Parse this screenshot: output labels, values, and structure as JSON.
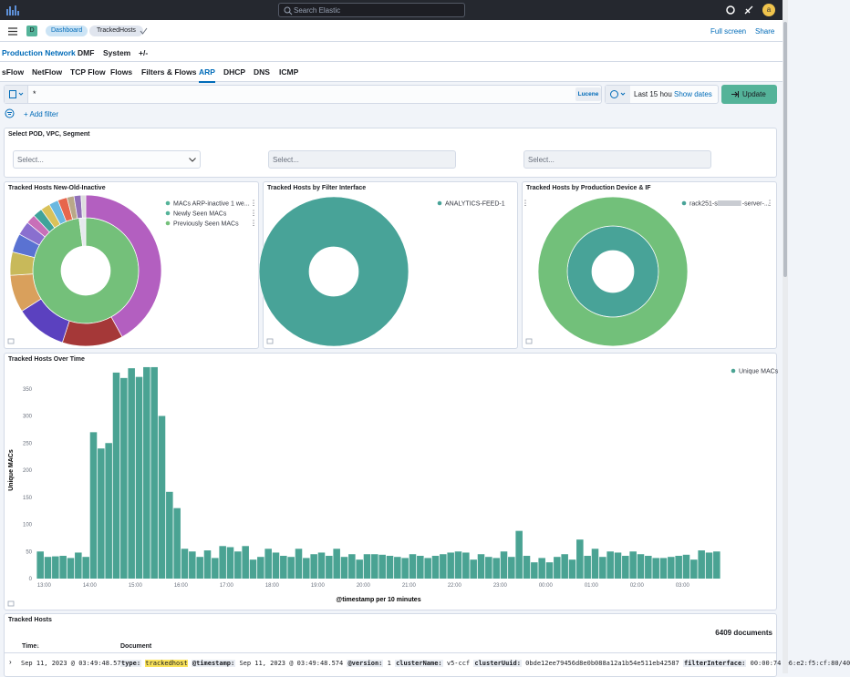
{
  "header": {
    "search_placeholder": "Search Elastic",
    "avatar": "a"
  },
  "nav": {
    "badge": "D",
    "breadcrumbs": [
      "Dashboard",
      "TrackedHosts"
    ],
    "actions": [
      "Full screen",
      "Share"
    ]
  },
  "tabs_primary": [
    "Production Network",
    "DMF",
    "System",
    "+/-"
  ],
  "tabs_secondary": [
    "sFlow",
    "NetFlow",
    "TCP Flow",
    "Flows",
    "Filters & Flows",
    "ARP",
    "DHCP",
    "DNS",
    "ICMP"
  ],
  "query": {
    "text": "*",
    "language": "Lucene",
    "time": "Last 15 hou",
    "show_dates": "Show dates",
    "update": "Update",
    "add_filter": "+ Add filter"
  },
  "controls": {
    "title": "Select POD, VPC, Segment",
    "selects": [
      "Select...",
      "Select...",
      "Select..."
    ]
  },
  "chart_data": [
    {
      "type": "pie",
      "title": "Tracked Hosts New-Old-Inactive",
      "series": [
        {
          "name": "MACs ARP-inactive 1 we...",
          "color": "#54b399"
        },
        {
          "name": "Newly Seen MACs",
          "color": "#54b399"
        },
        {
          "name": "Previously Seen MACs",
          "color": "#74c07a"
        }
      ],
      "rings": [
        {
          "values": [
            98,
            2
          ],
          "colors": [
            "#74c07a",
            "#e6e9ee"
          ]
        },
        {
          "values": [
            42,
            13,
            11,
            8,
            5,
            4,
            3,
            2,
            2,
            2,
            2,
            2,
            1.5,
            1.5,
            1
          ],
          "colors": [
            "#b35fc0",
            "#a53838",
            "#5b41bf",
            "#d9a05c",
            "#c8b95a",
            "#5a72d2",
            "#8a6fcf",
            "#c86fb8",
            "#3fa39a",
            "#d9c25a",
            "#6ab8e0",
            "#e7664c",
            "#b9a888",
            "#9170b8",
            "#ddd"
          ]
        }
      ]
    },
    {
      "type": "pie",
      "title": "Tracked Hosts by Filter Interface",
      "series": [
        {
          "name": "ANALYTICS-FEED-1",
          "color": "#48a398"
        }
      ],
      "rings": [
        {
          "values": [
            100
          ],
          "colors": [
            "#48a398"
          ]
        }
      ]
    },
    {
      "type": "pie",
      "title": "Tracked Hosts by Production Device & IF",
      "series": [
        {
          "name": "rack251-s",
          "suffix": "-server-...",
          "color": "#48a398"
        }
      ],
      "rings": [
        {
          "values": [
            100
          ],
          "colors": [
            "#48a398"
          ]
        },
        {
          "values": [
            100
          ],
          "colors": [
            "#72c07a"
          ]
        }
      ]
    },
    {
      "type": "bar",
      "title": "Tracked Hosts Over Time",
      "ylabel": "Unique MACs",
      "xlabel": "@timestamp per 10 minutes",
      "categories": [
        null,
        "13:00",
        null,
        null,
        null,
        null,
        null,
        "14:00",
        null,
        null,
        null,
        null,
        null,
        "15:00",
        null,
        null,
        null,
        null,
        null,
        "16:00",
        null,
        null,
        null,
        null,
        null,
        "17:00",
        null,
        null,
        null,
        null,
        null,
        "18:00",
        null,
        null,
        null,
        null,
        null,
        "19:00",
        null,
        null,
        null,
        null,
        null,
        "20:00",
        null,
        null,
        null,
        null,
        null,
        "21:00",
        null,
        null,
        null,
        null,
        null,
        "22:00",
        null,
        null,
        null,
        null,
        null,
        "23:00",
        null,
        null,
        null,
        null,
        null,
        "00:00",
        null,
        null,
        null,
        null,
        null,
        "01:00",
        null,
        null,
        null,
        null,
        null,
        "02:00",
        null,
        null,
        null,
        null,
        null,
        "03:00",
        null,
        null,
        null,
        null
      ],
      "series": [
        {
          "name": "Unique MACs",
          "color": "#4aa393",
          "values": [
            50,
            40,
            41,
            42,
            38,
            48,
            40,
            270,
            240,
            250,
            380,
            370,
            388,
            372,
            390,
            390,
            300,
            160,
            130,
            55,
            50,
            40,
            52,
            38,
            60,
            58,
            50,
            60,
            35,
            40,
            55,
            48,
            42,
            40,
            55,
            38,
            45,
            48,
            42,
            55,
            40,
            45,
            35,
            45,
            45,
            44,
            42,
            40,
            38,
            45,
            42,
            38,
            42,
            45,
            48,
            50,
            48,
            35,
            45,
            40,
            38,
            50,
            40,
            88,
            42,
            30,
            38,
            30,
            40,
            45,
            35,
            72,
            42,
            55,
            40,
            50,
            48,
            42,
            50,
            45,
            42,
            38,
            38,
            40,
            42,
            44,
            35,
            52,
            48,
            50
          ]
        }
      ],
      "ylim": [
        0,
        400
      ],
      "yticks": [
        0,
        50,
        100,
        150,
        200,
        250,
        300,
        350
      ],
      "grid": false,
      "legend": "top-right"
    }
  ],
  "table": {
    "title": "Tracked Hosts",
    "count": "6409 documents",
    "columns": [
      "Time",
      "Document"
    ],
    "rows": [
      {
        "time": "Sep 11, 2023 @ 03:49:48.574",
        "fields": [
          {
            "key": "type:",
            "value": "trackedhost"
          },
          {
            "key": "@timestamp:",
            "value": "Sep 11, 2023 @ 03:49:48.574"
          },
          {
            "key": "@version:",
            "value": "1"
          },
          {
            "key": "clusterName:",
            "value": "v5-ccf"
          },
          {
            "key": "clusterUuid:",
            "value": "0bde12ee79456d8e0b088a12a1b54e511eb42587"
          },
          {
            "key": "filterInterface:",
            "value": "00:00:74:e6:e2:f5:cf:80/40"
          }
        ]
      }
    ]
  }
}
